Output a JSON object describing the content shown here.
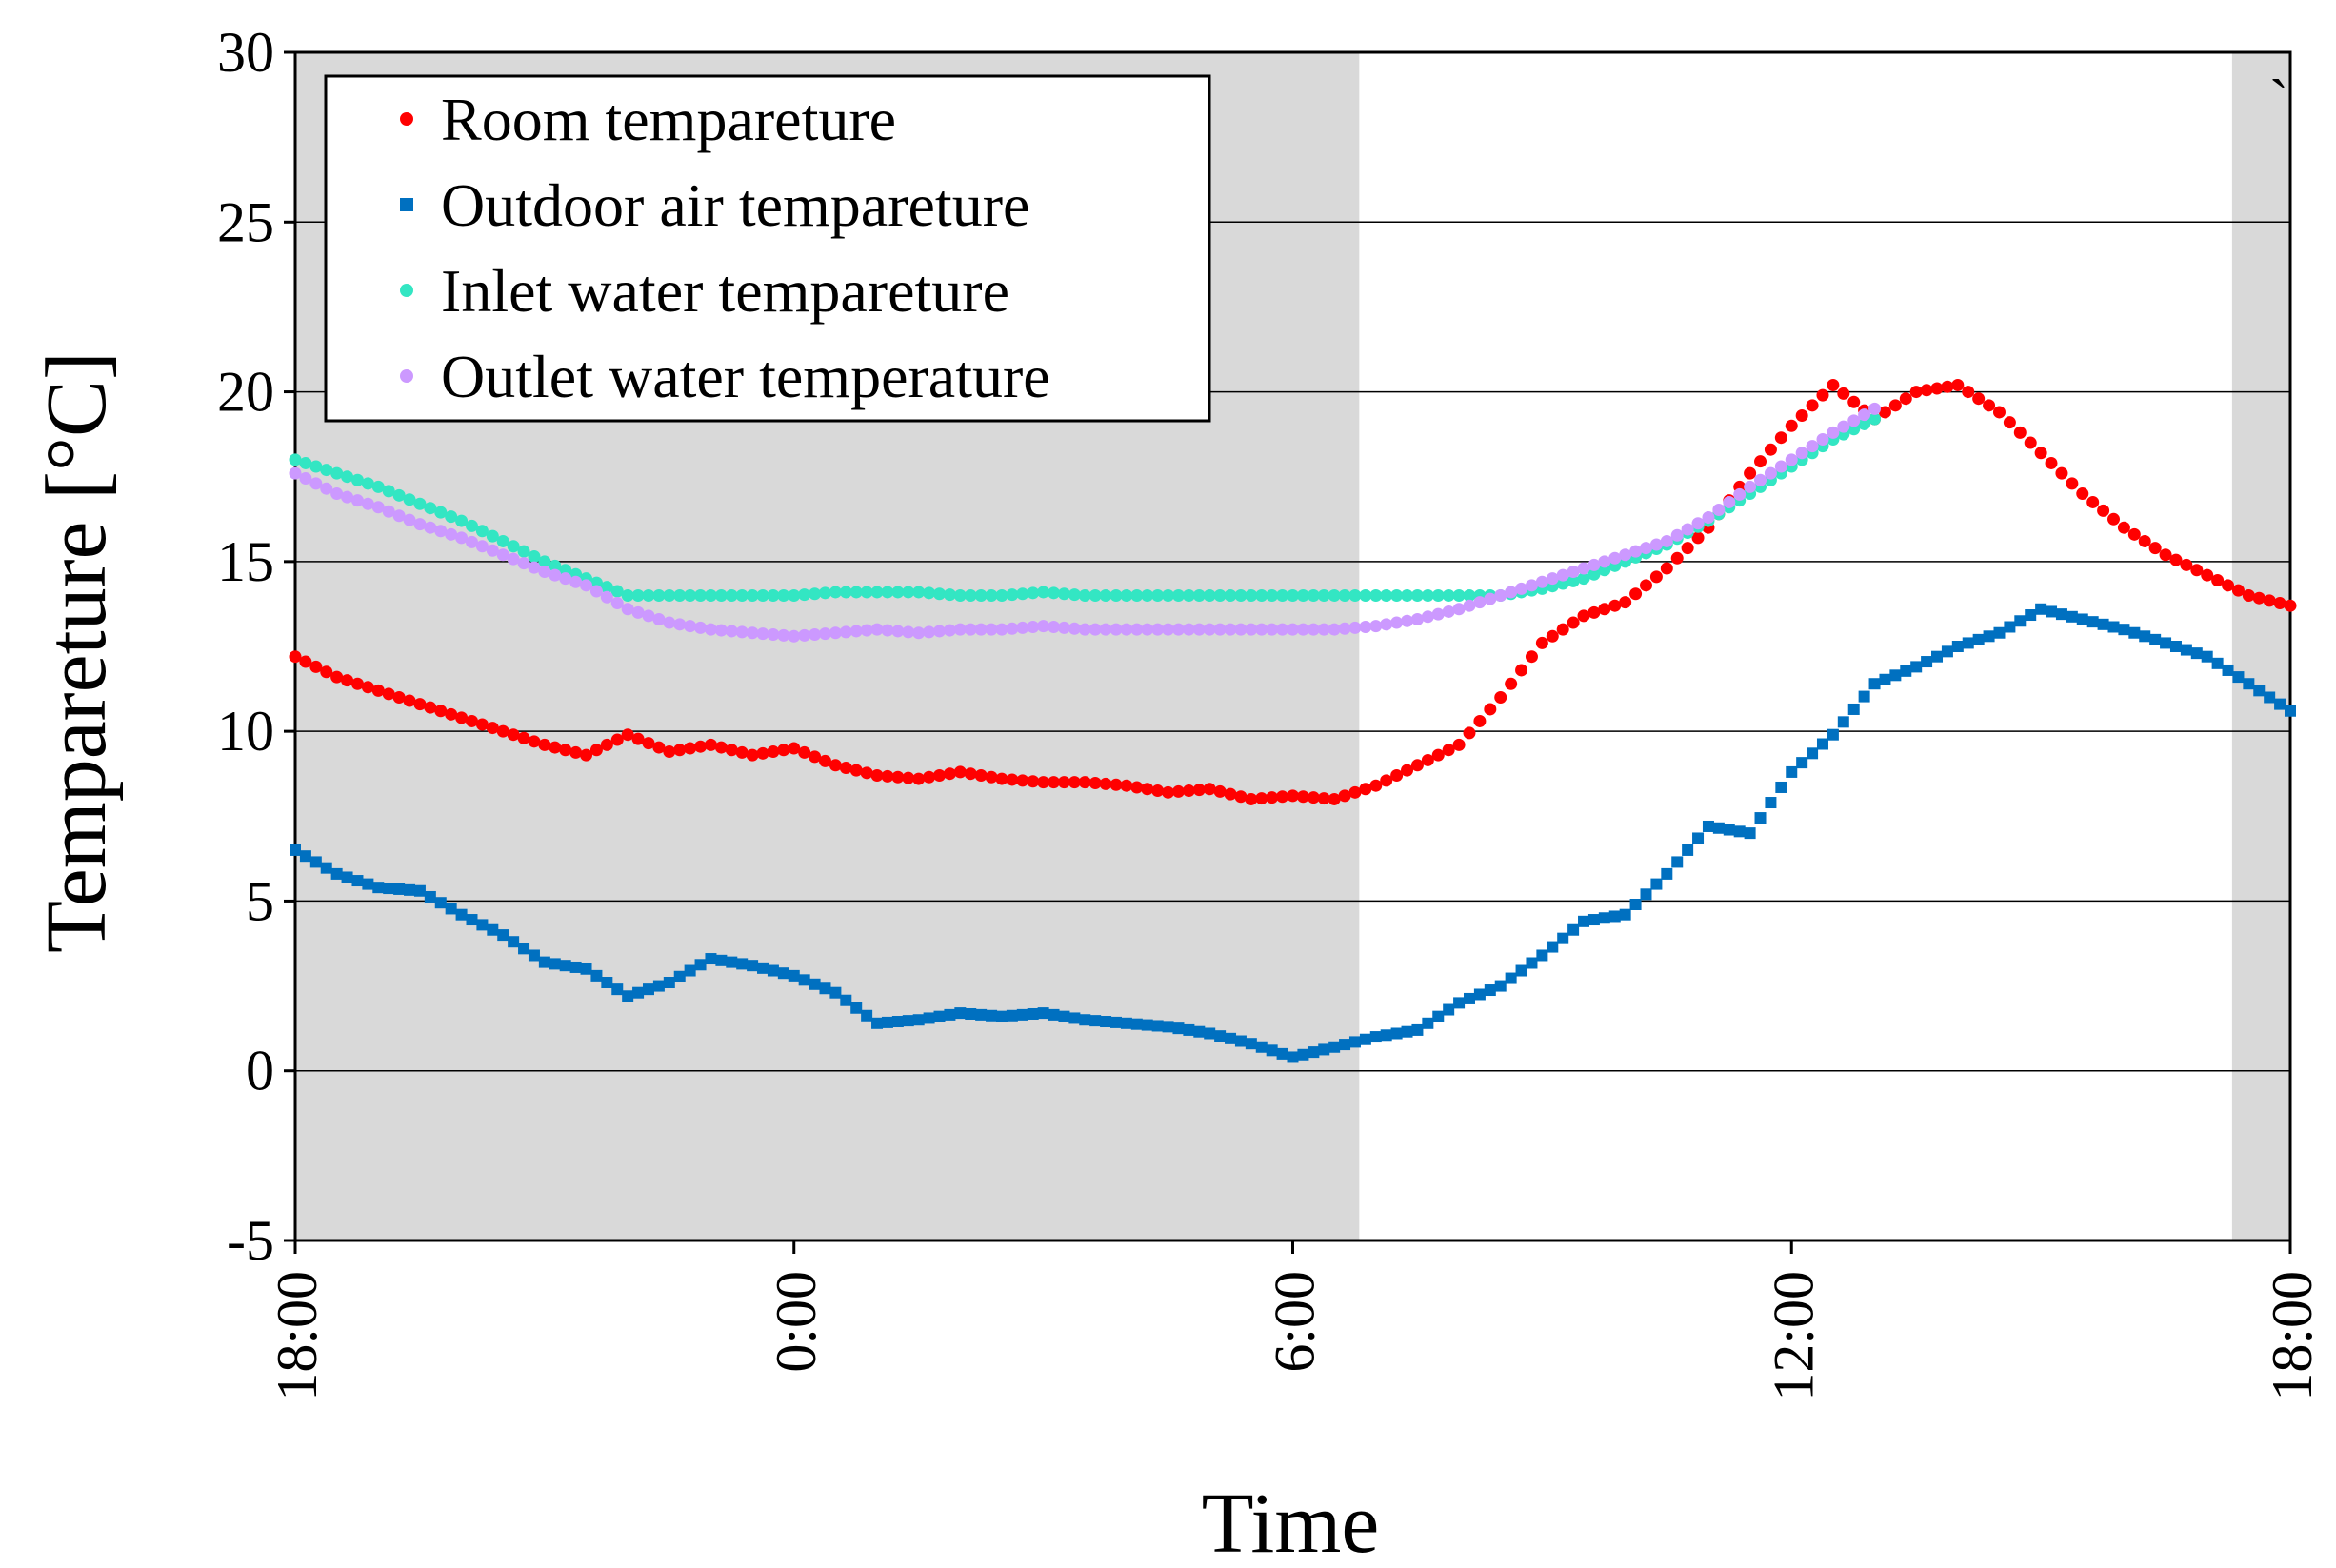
{
  "chart_data": {
    "type": "scatter",
    "title": "",
    "xlabel": "Time",
    "ylabel": "Tempareture [°C]",
    "x_unit": "hours since 18:00",
    "xlim": [
      0,
      24
    ],
    "ylim": [
      -5,
      30
    ],
    "x_ticks": [
      {
        "value": 0,
        "label": "18:00"
      },
      {
        "value": 6,
        "label": "0:00"
      },
      {
        "value": 12,
        "label": "6:00"
      },
      {
        "value": 18,
        "label": "12:00"
      },
      {
        "value": 24,
        "label": "18:00"
      }
    ],
    "y_ticks": [
      {
        "value": -5,
        "label": "-5"
      },
      {
        "value": 0,
        "label": "0"
      },
      {
        "value": 5,
        "label": "5"
      },
      {
        "value": 10,
        "label": "10"
      },
      {
        "value": 15,
        "label": "15"
      },
      {
        "value": 20,
        "label": "20"
      },
      {
        "value": 25,
        "label": "25"
      },
      {
        "value": 30,
        "label": "30"
      }
    ],
    "grid": "horizontal",
    "shaded_periods": [
      [
        0,
        12.8
      ],
      [
        23.3,
        24
      ]
    ],
    "legend_position": "top-left",
    "series": [
      {
        "name": "Room tempareture",
        "color": "#ff0000",
        "marker": "circle",
        "x": [
          0,
          0.5,
          1,
          1.5,
          2,
          2.5,
          3,
          3.5,
          4,
          4.5,
          5,
          5.5,
          6,
          6.5,
          7,
          7.5,
          8,
          8.5,
          9,
          9.5,
          10,
          10.5,
          11,
          11.5,
          12,
          12.5,
          13,
          13.5,
          14,
          14.5,
          15,
          15.5,
          16,
          16.5,
          17,
          17.5,
          18,
          18.5,
          19,
          19.5,
          20,
          20.5,
          21,
          21.5,
          22,
          22.5,
          23,
          23.5,
          24
        ],
        "values": [
          12.2,
          11.6,
          11.2,
          10.8,
          10.4,
          10.0,
          9.6,
          9.3,
          9.9,
          9.4,
          9.6,
          9.3,
          9.5,
          9.0,
          8.7,
          8.6,
          8.8,
          8.6,
          8.5,
          8.5,
          8.4,
          8.2,
          8.3,
          8.0,
          8.1,
          8.0,
          8.4,
          9.0,
          9.6,
          11.0,
          12.6,
          13.4,
          13.8,
          14.8,
          16.0,
          17.6,
          19.0,
          20.2,
          19.2,
          20.0,
          20.2,
          19.4,
          18.2,
          17.0,
          16.0,
          15.2,
          14.6,
          14.0,
          13.7
        ]
      },
      {
        "name": "Outdoor air tempareture",
        "color": "#0070c0",
        "marker": "square",
        "x": [
          0,
          0.5,
          1,
          1.5,
          2,
          2.5,
          3,
          3.5,
          4,
          4.5,
          5,
          5.5,
          6,
          6.5,
          7,
          7.5,
          8,
          8.5,
          9,
          9.5,
          10,
          10.5,
          11,
          11.5,
          12,
          12.5,
          13,
          13.5,
          14,
          14.5,
          15,
          15.5,
          16,
          16.5,
          17,
          17.5,
          18,
          18.5,
          19,
          19.5,
          20,
          20.5,
          21,
          21.5,
          22,
          22.5,
          23,
          23.5,
          24
        ],
        "values": [
          6.5,
          5.8,
          5.4,
          5.3,
          4.6,
          4.0,
          3.2,
          3.0,
          2.2,
          2.6,
          3.3,
          3.1,
          2.8,
          2.3,
          1.4,
          1.5,
          1.7,
          1.6,
          1.7,
          1.5,
          1.4,
          1.3,
          1.1,
          0.8,
          0.4,
          0.7,
          1.0,
          1.2,
          2.0,
          2.5,
          3.4,
          4.4,
          4.6,
          5.8,
          7.2,
          7.0,
          8.8,
          9.9,
          11.4,
          11.9,
          12.5,
          12.9,
          13.6,
          13.3,
          13.0,
          12.6,
          12.2,
          11.4,
          10.6
        ]
      },
      {
        "name": "Inlet water tempareture",
        "color": "#33e6c3",
        "marker": "circle",
        "x": [
          0,
          0.5,
          1,
          1.5,
          2,
          2.5,
          3,
          3.5,
          4,
          4.5,
          5,
          5.5,
          6,
          6.5,
          7,
          7.5,
          8,
          8.5,
          9,
          9.5,
          10,
          10.5,
          11,
          11.5,
          12,
          12.5,
          13,
          13.5,
          14,
          14.5,
          15,
          15.5,
          16,
          16.5,
          17,
          17.5,
          18,
          18.5,
          19
        ],
        "values": [
          18.0,
          17.6,
          17.2,
          16.7,
          16.2,
          15.6,
          15.0,
          14.5,
          14.0,
          14.0,
          14.0,
          14.0,
          14.0,
          14.1,
          14.1,
          14.1,
          14.0,
          14.0,
          14.1,
          14.0,
          14.0,
          14.0,
          14.0,
          14.0,
          14.0,
          14.0,
          14.0,
          14.0,
          14.0,
          14.0,
          14.2,
          14.5,
          15.0,
          15.5,
          16.2,
          17.0,
          17.8,
          18.6,
          19.2
        ]
      },
      {
        "name": "Outlet water temperature",
        "color": "#cc99ff",
        "marker": "circle",
        "x": [
          0,
          0.5,
          1,
          1.5,
          2,
          2.5,
          3,
          3.5,
          4,
          4.5,
          5,
          5.5,
          6,
          6.5,
          7,
          7.5,
          8,
          8.5,
          9,
          9.5,
          10,
          10.5,
          11,
          11.5,
          12,
          12.5,
          13,
          13.5,
          14,
          14.5,
          15,
          15.5,
          16,
          16.5,
          17,
          17.5,
          18,
          18.5,
          19
        ],
        "values": [
          17.6,
          17.0,
          16.6,
          16.1,
          15.7,
          15.2,
          14.7,
          14.3,
          13.6,
          13.2,
          13.0,
          12.9,
          12.8,
          12.9,
          13.0,
          12.9,
          13.0,
          13.0,
          13.1,
          13.0,
          13.0,
          13.0,
          13.0,
          13.0,
          13.0,
          13.0,
          13.1,
          13.3,
          13.6,
          14.0,
          14.4,
          14.8,
          15.2,
          15.6,
          16.3,
          17.2,
          18.0,
          18.8,
          19.5
        ]
      }
    ],
    "annotations": [
      "`"
    ]
  }
}
